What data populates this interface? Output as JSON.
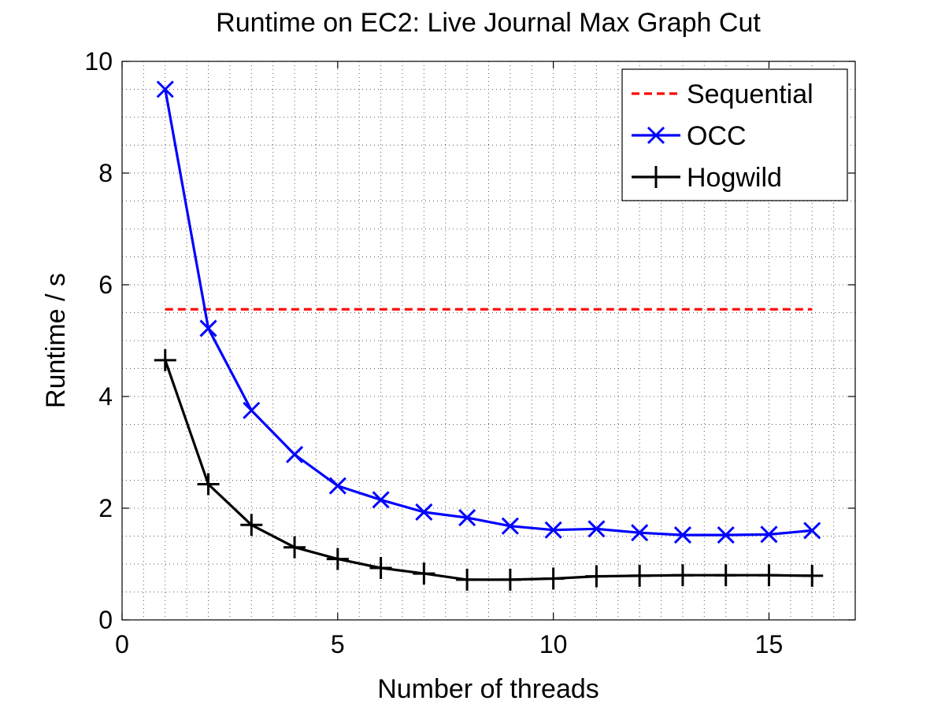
{
  "chart_data": {
    "type": "line",
    "title": "Runtime on EC2: Live Journal Max Graph Cut",
    "xlabel": "Number of threads",
    "ylabel": "Runtime / s",
    "xlim": [
      0,
      17
    ],
    "ylim": [
      0,
      10
    ],
    "xticks": [
      0,
      5,
      10,
      15
    ],
    "yticks": [
      0,
      2,
      4,
      6,
      8,
      10
    ],
    "grid": true,
    "legend_position": "top-right",
    "series": [
      {
        "name": "Sequential",
        "color": "#ff0000",
        "line_style": "dashed",
        "marker": "none",
        "x": [
          1,
          16
        ],
        "y": [
          5.56,
          5.56
        ]
      },
      {
        "name": "OCC",
        "color": "#0000ff",
        "line_style": "solid",
        "marker": "x",
        "x": [
          1,
          2,
          3,
          4,
          5,
          6,
          7,
          8,
          9,
          10,
          11,
          12,
          13,
          14,
          15,
          16
        ],
        "y": [
          9.5,
          5.22,
          3.75,
          2.96,
          2.4,
          2.15,
          1.93,
          1.83,
          1.68,
          1.61,
          1.63,
          1.56,
          1.52,
          1.52,
          1.53,
          1.6
        ]
      },
      {
        "name": "Hogwild",
        "color": "#000000",
        "line_style": "solid",
        "marker": "+",
        "x": [
          1,
          2,
          3,
          4,
          5,
          6,
          7,
          8,
          9,
          10,
          11,
          12,
          13,
          14,
          15,
          16
        ],
        "y": [
          4.65,
          2.43,
          1.7,
          1.3,
          1.09,
          0.93,
          0.83,
          0.72,
          0.72,
          0.74,
          0.78,
          0.79,
          0.8,
          0.8,
          0.8,
          0.79
        ]
      }
    ]
  }
}
